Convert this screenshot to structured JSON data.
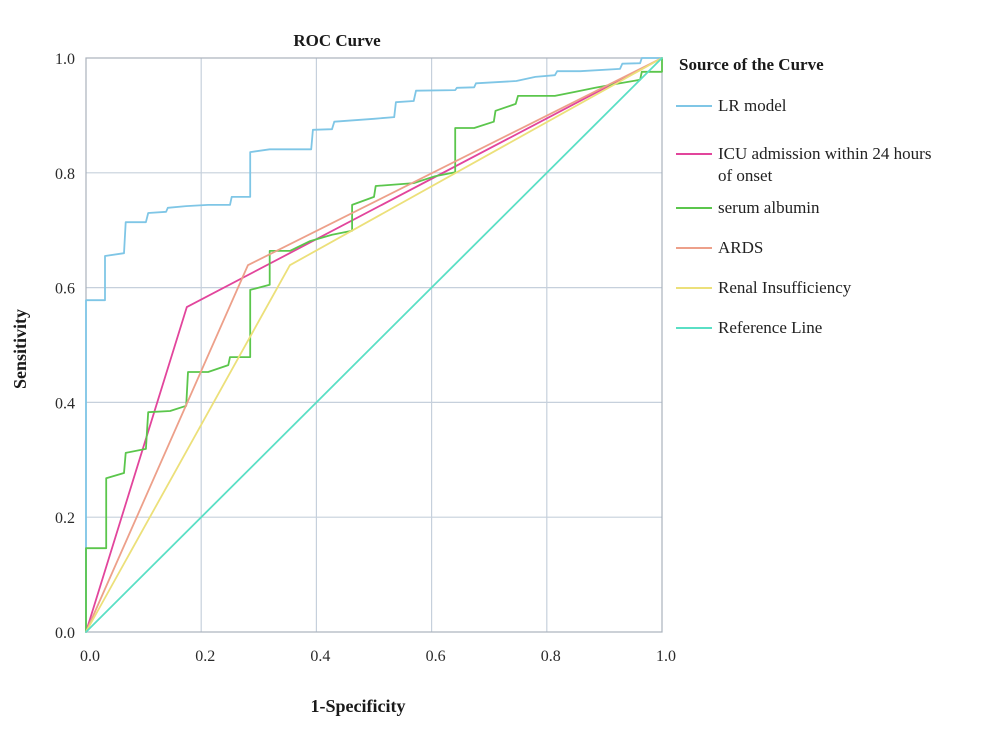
{
  "chart_data": {
    "type": "line",
    "title": "ROC Curve",
    "xlabel": "1-Specificity",
    "ylabel": "Sensitivity",
    "xlim": [
      0,
      1
    ],
    "ylim": [
      0,
      1
    ],
    "xticks": [
      "0.0",
      "0.2",
      "0.4",
      "0.6",
      "0.8",
      "1.0"
    ],
    "yticks": [
      "0.0",
      "0.2",
      "0.4",
      "0.6",
      "0.8",
      "1.0"
    ],
    "grid": true,
    "legend_title": "Source of the Curve",
    "legend_position": "right",
    "series": [
      {
        "name": "LR model",
        "color": "#7fc6e6",
        "points": [
          [
            0,
            0
          ],
          [
            0,
            0.578
          ],
          [
            0.033,
            0.578
          ],
          [
            0.033,
            0.655
          ],
          [
            0.066,
            0.66
          ],
          [
            0.069,
            0.714
          ],
          [
            0.104,
            0.714
          ],
          [
            0.108,
            0.73
          ],
          [
            0.139,
            0.732
          ],
          [
            0.142,
            0.739
          ],
          [
            0.174,
            0.742
          ],
          [
            0.212,
            0.744
          ],
          [
            0.25,
            0.744
          ],
          [
            0.253,
            0.758
          ],
          [
            0.285,
            0.758
          ],
          [
            0.285,
            0.836
          ],
          [
            0.319,
            0.841
          ],
          [
            0.391,
            0.841
          ],
          [
            0.394,
            0.875
          ],
          [
            0.427,
            0.876
          ],
          [
            0.431,
            0.889
          ],
          [
            0.5,
            0.894
          ],
          [
            0.535,
            0.897
          ],
          [
            0.538,
            0.923
          ],
          [
            0.569,
            0.925
          ],
          [
            0.573,
            0.943
          ],
          [
            0.641,
            0.944
          ],
          [
            0.644,
            0.948
          ],
          [
            0.674,
            0.949
          ],
          [
            0.677,
            0.956
          ],
          [
            0.747,
            0.96
          ],
          [
            0.78,
            0.967
          ],
          [
            0.814,
            0.97
          ],
          [
            0.818,
            0.977
          ],
          [
            0.858,
            0.977
          ],
          [
            0.927,
            0.981
          ],
          [
            0.931,
            0.99
          ],
          [
            0.962,
            0.991
          ],
          [
            0.965,
            1
          ],
          [
            1,
            1
          ]
        ]
      },
      {
        "name": "ICU admission within 24 hours of onset",
        "color": "#e2459c",
        "points": [
          [
            0,
            0
          ],
          [
            0.175,
            0.566
          ],
          [
            1,
            1
          ]
        ]
      },
      {
        "name": "serum albumin",
        "color": "#5bc64c",
        "points": [
          [
            0,
            0
          ],
          [
            0,
            0.146
          ],
          [
            0.035,
            0.146
          ],
          [
            0.035,
            0.268
          ],
          [
            0.066,
            0.277
          ],
          [
            0.069,
            0.312
          ],
          [
            0.104,
            0.319
          ],
          [
            0.108,
            0.383
          ],
          [
            0.146,
            0.385
          ],
          [
            0.174,
            0.394
          ],
          [
            0.177,
            0.453
          ],
          [
            0.212,
            0.453
          ],
          [
            0.247,
            0.465
          ],
          [
            0.25,
            0.479
          ],
          [
            0.285,
            0.479
          ],
          [
            0.285,
            0.596
          ],
          [
            0.319,
            0.605
          ],
          [
            0.319,
            0.664
          ],
          [
            0.354,
            0.664
          ],
          [
            0.389,
            0.681
          ],
          [
            0.427,
            0.692
          ],
          [
            0.462,
            0.699
          ],
          [
            0.462,
            0.744
          ],
          [
            0.5,
            0.758
          ],
          [
            0.503,
            0.777
          ],
          [
            0.569,
            0.782
          ],
          [
            0.606,
            0.794
          ],
          [
            0.641,
            0.801
          ],
          [
            0.641,
            0.878
          ],
          [
            0.674,
            0.878
          ],
          [
            0.708,
            0.889
          ],
          [
            0.711,
            0.908
          ],
          [
            0.746,
            0.92
          ],
          [
            0.75,
            0.934
          ],
          [
            0.814,
            0.934
          ],
          [
            0.849,
            0.941
          ],
          [
            0.884,
            0.948
          ],
          [
            0.922,
            0.955
          ],
          [
            0.962,
            0.962
          ],
          [
            0.965,
            0.976
          ],
          [
            1,
            0.976
          ],
          [
            1,
            1
          ]
        ]
      },
      {
        "name": "ARDS",
        "color": "#eda08a",
        "points": [
          [
            0,
            0
          ],
          [
            0.281,
            0.639
          ],
          [
            1,
            1
          ]
        ]
      },
      {
        "name": "Renal Insufficiency",
        "color": "#ece07a",
        "points": [
          [
            0,
            0
          ],
          [
            0.354,
            0.639
          ],
          [
            1,
            1
          ]
        ]
      },
      {
        "name": "Reference Line",
        "color": "#5adfc5",
        "points": [
          [
            0,
            0
          ],
          [
            1,
            1
          ]
        ]
      }
    ]
  }
}
